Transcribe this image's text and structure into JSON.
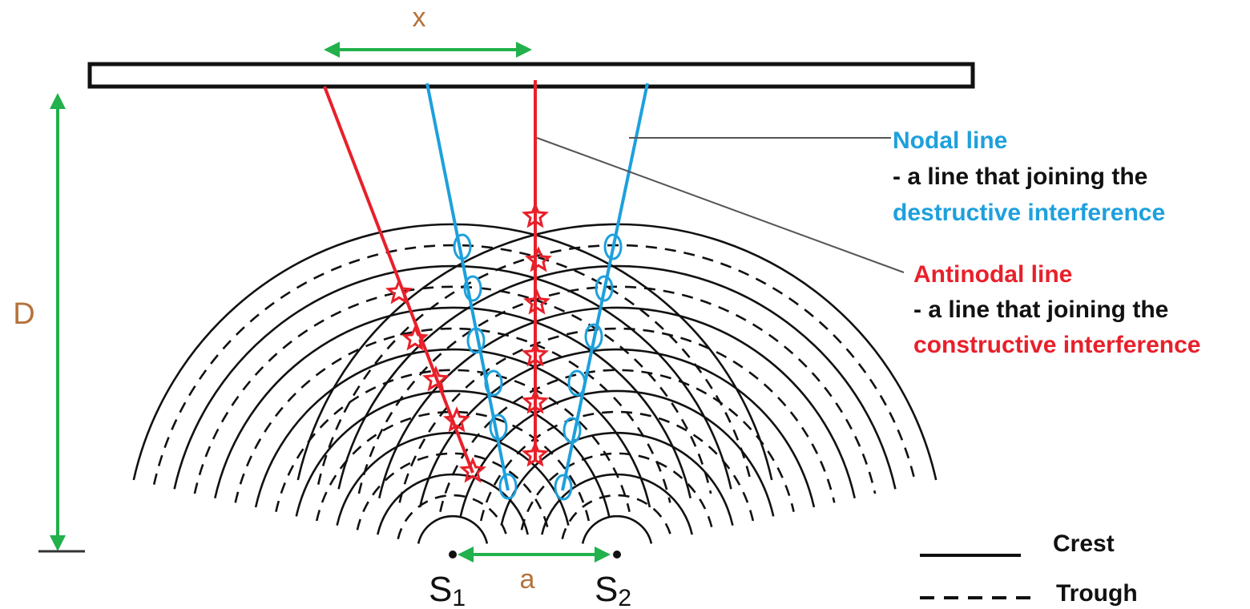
{
  "labels": {
    "x": "x",
    "D": "D",
    "a": "a",
    "s1_main": "S",
    "s1_sub": "1",
    "s2_main": "S",
    "s2_sub": "2"
  },
  "annotations": {
    "nodal_title": "Nodal line",
    "nodal_desc": "- a line that joining the",
    "nodal_desc2": "destructive interference",
    "antinodal_title": "Antinodal line",
    "antinodal_desc": "- a line that joining the",
    "antinodal_desc2": "constructive interference"
  },
  "legend": {
    "crest": "Crest",
    "trough": "Trough"
  },
  "colors": {
    "nodal": "#1ea0dc",
    "antinodal": "#e8202a",
    "dimension": "#22b14c",
    "label_brown": "#b5723c",
    "black": "#111111"
  }
}
